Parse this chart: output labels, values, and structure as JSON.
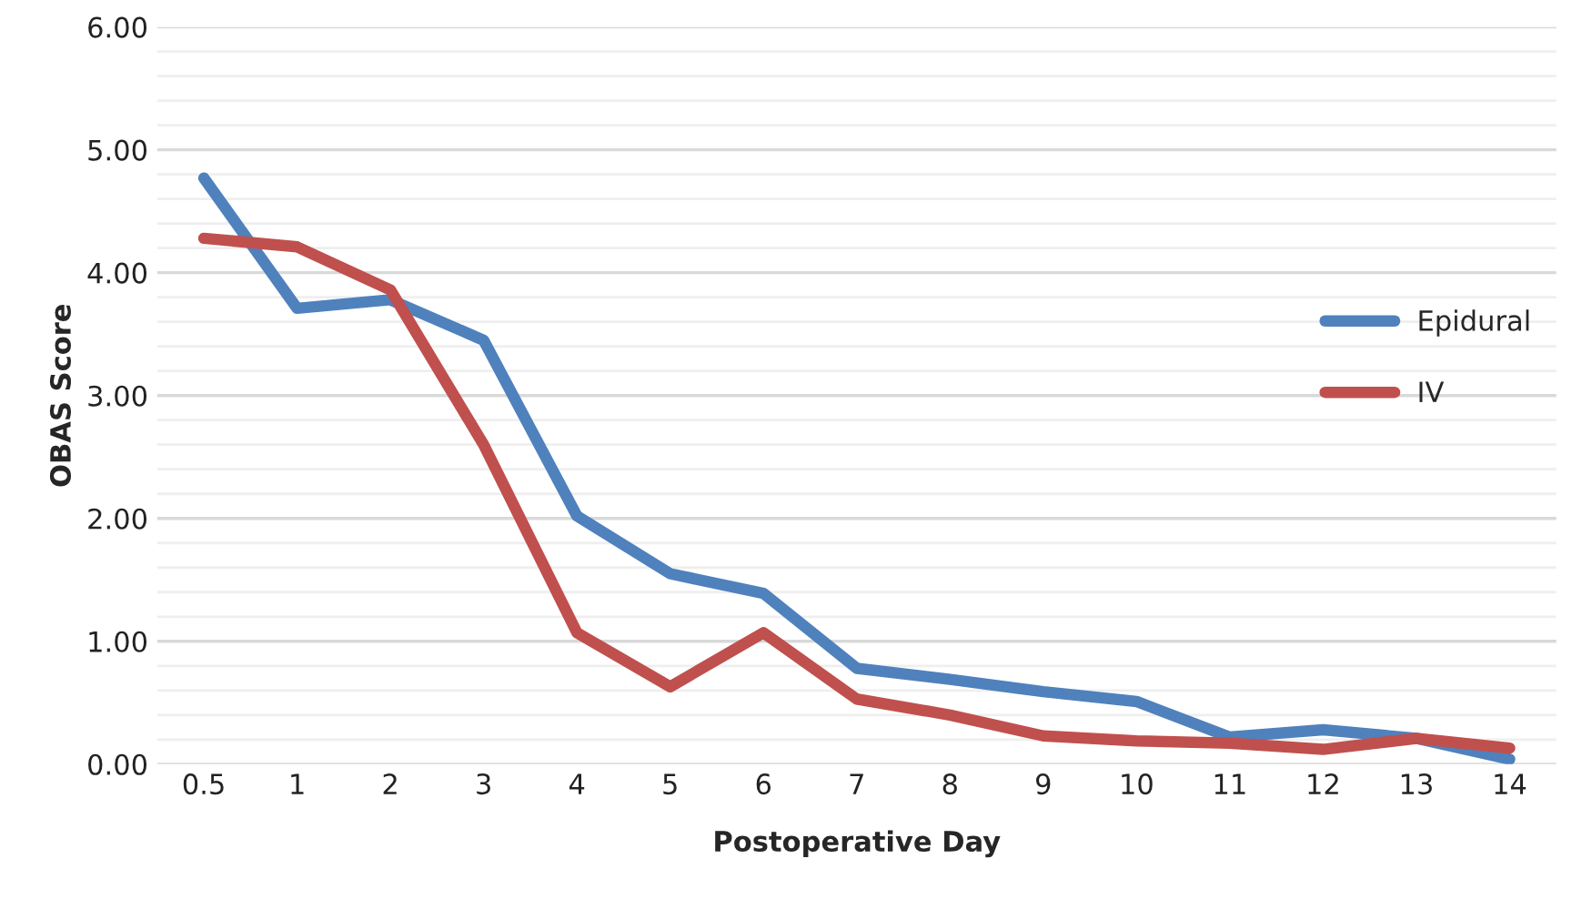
{
  "chart_data": {
    "type": "line",
    "xlabel": "Postoperative Day",
    "ylabel": "OBAS Score",
    "categories": [
      "0.5",
      "1",
      "2",
      "3",
      "4",
      "5",
      "6",
      "7",
      "8",
      "9",
      "10",
      "11",
      "12",
      "13",
      "14"
    ],
    "series": [
      {
        "name": "Epidural",
        "color": "#4f81bd",
        "values": [
          4.77,
          3.71,
          3.78,
          3.45,
          2.02,
          1.55,
          1.39,
          0.78,
          0.69,
          0.59,
          0.51,
          0.22,
          0.28,
          0.21,
          0.04
        ]
      },
      {
        "name": "IV",
        "color": "#c0504d",
        "values": [
          4.28,
          4.21,
          3.86,
          2.6,
          1.07,
          0.63,
          1.07,
          0.53,
          0.4,
          0.23,
          0.19,
          0.17,
          0.12,
          0.21,
          0.13
        ]
      }
    ],
    "ylim": [
      0,
      6
    ],
    "yticks": [
      {
        "value": 0,
        "label": "0.00"
      },
      {
        "value": 0.2,
        "label": null
      },
      {
        "value": 0.4,
        "label": null
      },
      {
        "value": 0.6,
        "label": null
      },
      {
        "value": 0.8,
        "label": null
      },
      {
        "value": 1,
        "label": "1.00"
      },
      {
        "value": 1.2,
        "label": null
      },
      {
        "value": 1.4,
        "label": null
      },
      {
        "value": 1.6,
        "label": null
      },
      {
        "value": 1.8,
        "label": null
      },
      {
        "value": 2,
        "label": "2.00"
      },
      {
        "value": 2.2,
        "label": null
      },
      {
        "value": 2.4,
        "label": null
      },
      {
        "value": 2.6,
        "label": null
      },
      {
        "value": 2.8,
        "label": null
      },
      {
        "value": 3,
        "label": "3.00"
      },
      {
        "value": 3.2,
        "label": null
      },
      {
        "value": 3.4,
        "label": null
      },
      {
        "value": 3.6,
        "label": null
      },
      {
        "value": 3.8,
        "label": null
      },
      {
        "value": 4,
        "label": "4.00"
      },
      {
        "value": 4.2,
        "label": null
      },
      {
        "value": 4.4,
        "label": null
      },
      {
        "value": 4.6,
        "label": null
      },
      {
        "value": 4.8,
        "label": null
      },
      {
        "value": 5,
        "label": "5.00"
      },
      {
        "value": 5.2,
        "label": null
      },
      {
        "value": 5.4,
        "label": null
      },
      {
        "value": 5.6,
        "label": null
      },
      {
        "value": 5.8,
        "label": null
      },
      {
        "value": 6,
        "label": "6.00"
      }
    ],
    "grid": "y",
    "legend": "right",
    "marker": "none",
    "line_style": "solid"
  }
}
